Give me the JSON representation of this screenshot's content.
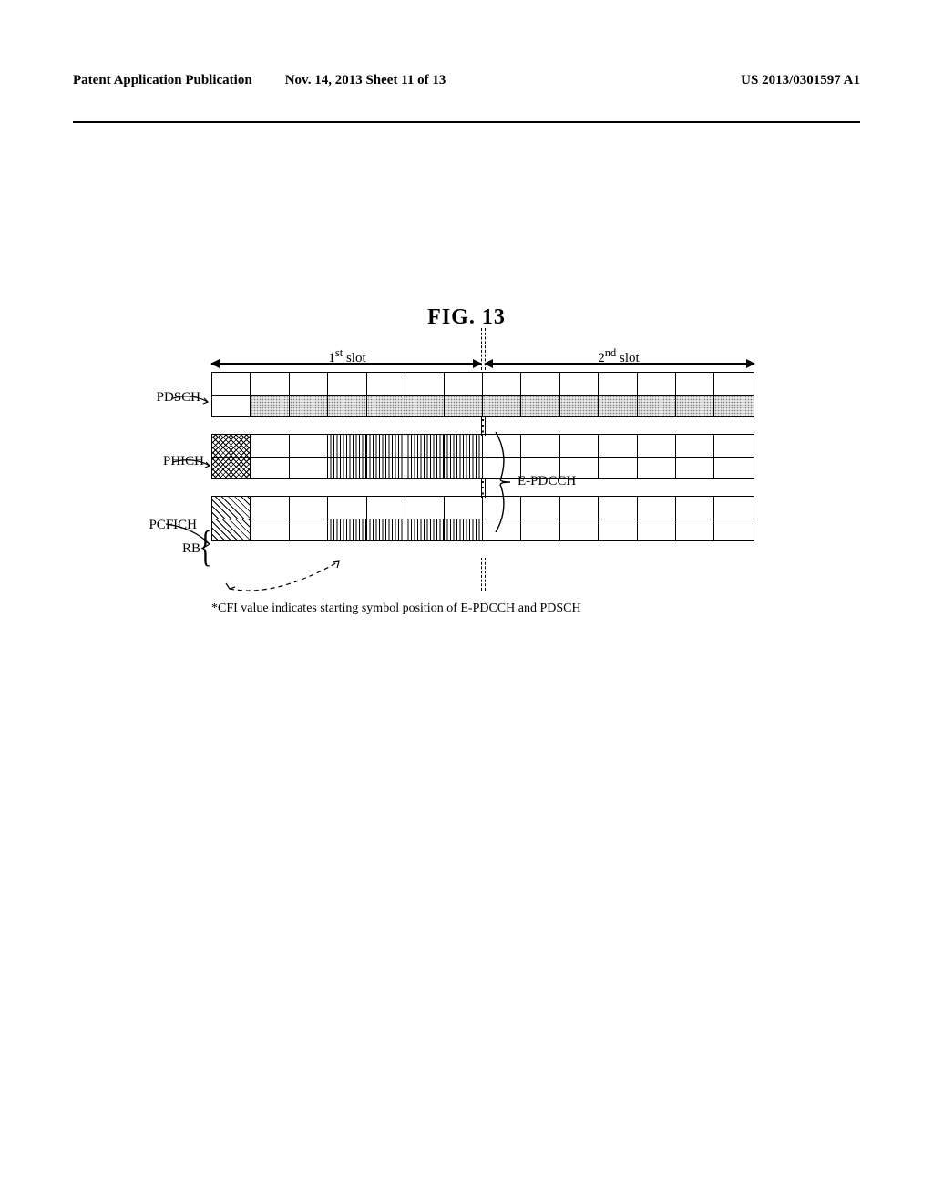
{
  "header": {
    "left": "Patent Application Publication",
    "mid": "Nov. 14, 2013  Sheet 11 of 13",
    "right": "US 2013/0301597 A1"
  },
  "figure": {
    "title": "FIG. 13",
    "slot1": "1",
    "slot1_suffix": "st",
    "slot1_word": " slot",
    "slot2": "2",
    "slot2_suffix": "nd",
    "slot2_word": " slot",
    "labels": {
      "pdsch": "PDSCH",
      "phich": "PHICH",
      "pcfich": "PCFICH",
      "rb": "RB",
      "epdcch": "E-PDCCH"
    },
    "footnote": "*CFI value indicates starting symbol position of E-PDCCH and PDSCH",
    "layout": {
      "cols": 14,
      "col_w": 42.57,
      "pdsch_fill_cols_from": 1,
      "pdsch_fill_cols_to": 14,
      "epd_fill_cols_from": 3,
      "epd_fill_cols_to": 7
    },
    "colors": {
      "line": "#000000",
      "dots_bg": "#e8e8e8",
      "dots_fg": "#808080"
    }
  }
}
